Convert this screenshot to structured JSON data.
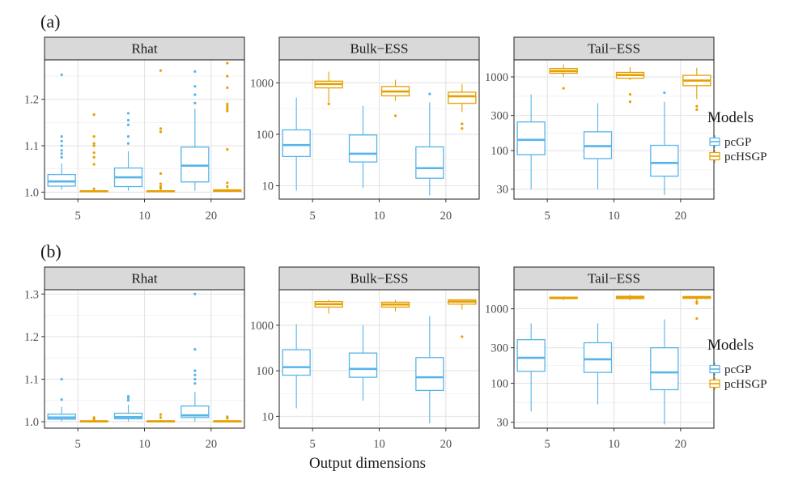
{
  "figure": {
    "row_labels": [
      "(a)",
      "(b)"
    ],
    "xlabel": "Output dimensions"
  },
  "legend": {
    "title": "Models",
    "entries": [
      {
        "name": "pcGP",
        "color": "#56B4E9"
      },
      {
        "name": "pcHSGP",
        "color": "#E69F00"
      }
    ]
  },
  "chart_data": [
    {
      "type": "box",
      "row": "(a)",
      "title": "Rhat",
      "scale": "linear",
      "categories": [
        "5",
        "10",
        "20"
      ],
      "ylim": [
        0.985,
        1.285
      ],
      "yticks": [
        1.0,
        1.1,
        1.2
      ],
      "ytick_labels": [
        "1.0",
        "1.1",
        "1.2"
      ],
      "series": [
        {
          "name": "pcGP",
          "boxes": [
            {
              "min": 1.005,
              "q1": 1.013,
              "median": 1.023,
              "q3": 1.038,
              "max": 1.062,
              "outliers": [
                1.075,
                1.083,
                1.09,
                1.1,
                1.11,
                1.12,
                1.253
              ]
            },
            {
              "min": 1.003,
              "q1": 1.012,
              "median": 1.032,
              "q3": 1.052,
              "max": 1.088,
              "outliers": [
                1.105,
                1.12,
                1.145,
                1.155,
                1.17
              ]
            },
            {
              "min": 1.003,
              "q1": 1.022,
              "median": 1.057,
              "q3": 1.097,
              "max": 1.18,
              "outliers": [
                1.192,
                1.21,
                1.228,
                1.26
              ]
            }
          ]
        },
        {
          "name": "pcHSGP",
          "boxes": [
            {
              "min": 1.0,
              "q1": 1.001,
              "median": 1.002,
              "q3": 1.003,
              "max": 1.004,
              "outliers": [
                1.007,
                1.06,
                1.075,
                1.085,
                1.1,
                1.105,
                1.12,
                1.167
              ]
            },
            {
              "min": 1.0,
              "q1": 1.001,
              "median": 1.002,
              "q3": 1.003,
              "max": 1.005,
              "outliers": [
                1.008,
                1.012,
                1.018,
                1.04,
                1.13,
                1.137,
                1.262
              ]
            },
            {
              "min": 1.0,
              "q1": 1.002,
              "median": 1.003,
              "q3": 1.005,
              "max": 1.008,
              "outliers": [
                1.012,
                1.02,
                1.092,
                1.175,
                1.18,
                1.185,
                1.19,
                1.225,
                1.25,
                1.278
              ]
            }
          ]
        }
      ]
    },
    {
      "type": "box",
      "row": "(a)",
      "title": "Bulk−ESS",
      "scale": "log10",
      "categories": [
        "5",
        "10",
        "20"
      ],
      "ylim": [
        5.5,
        2800
      ],
      "yticks": [
        10,
        100,
        1000
      ],
      "ytick_labels": [
        "10",
        "100",
        "1000"
      ],
      "series": [
        {
          "name": "pcGP",
          "boxes": [
            {
              "min": 8,
              "q1": 37,
              "median": 62,
              "q3": 122,
              "max": 520,
              "outliers": []
            },
            {
              "min": 9,
              "q1": 29,
              "median": 42,
              "q3": 97,
              "max": 360,
              "outliers": []
            },
            {
              "min": 6.5,
              "q1": 14,
              "median": 22,
              "q3": 57,
              "max": 420,
              "outliers": [
                610
              ]
            }
          ]
        },
        {
          "name": "pcHSGP",
          "boxes": [
            {
              "min": 420,
              "q1": 800,
              "median": 950,
              "q3": 1080,
              "max": 1650,
              "outliers": [
                390
              ]
            },
            {
              "min": 450,
              "q1": 560,
              "median": 680,
              "q3": 850,
              "max": 1150,
              "outliers": [
                230
              ]
            },
            {
              "min": 270,
              "q1": 400,
              "median": 550,
              "q3": 660,
              "max": 950,
              "outliers": [
                160,
                130
              ]
            }
          ]
        }
      ]
    },
    {
      "type": "box",
      "row": "(a)",
      "title": "Tail−ESS",
      "scale": "log10",
      "categories": [
        "5",
        "10",
        "20"
      ],
      "ylim": [
        22,
        1700
      ],
      "yticks": [
        30,
        100,
        300,
        1000
      ],
      "ytick_labels": [
        "30",
        "100",
        "300",
        "1000"
      ],
      "series": [
        {
          "name": "pcGP",
          "boxes": [
            {
              "min": 30,
              "q1": 88,
              "median": 140,
              "q3": 245,
              "max": 580,
              "outliers": []
            },
            {
              "min": 30,
              "q1": 78,
              "median": 115,
              "q3": 180,
              "max": 440,
              "outliers": []
            },
            {
              "min": 25,
              "q1": 45,
              "median": 68,
              "q3": 118,
              "max": 460,
              "outliers": [
                610
              ]
            }
          ]
        },
        {
          "name": "pcHSGP",
          "boxes": [
            {
              "min": 1000,
              "q1": 1120,
              "median": 1200,
              "q3": 1300,
              "max": 1480,
              "outliers": [
                700
              ]
            },
            {
              "min": 900,
              "q1": 960,
              "median": 1060,
              "q3": 1150,
              "max": 1350,
              "outliers": [
                580,
                460
              ]
            },
            {
              "min": 500,
              "q1": 760,
              "median": 890,
              "q3": 1050,
              "max": 1330,
              "outliers": [
                400,
                360
              ]
            }
          ]
        }
      ]
    },
    {
      "type": "box",
      "row": "(b)",
      "title": "Rhat",
      "scale": "linear",
      "categories": [
        "5",
        "10",
        "20"
      ],
      "ylim": [
        0.985,
        1.31
      ],
      "yticks": [
        1.0,
        1.1,
        1.2,
        1.3
      ],
      "ytick_labels": [
        "1.0",
        "1.1",
        "1.2",
        "1.3"
      ],
      "series": [
        {
          "name": "pcGP",
          "boxes": [
            {
              "min": 1.001,
              "q1": 1.006,
              "median": 1.01,
              "q3": 1.018,
              "max": 1.035,
              "outliers": [
                1.052,
                1.1
              ]
            },
            {
              "min": 1.001,
              "q1": 1.007,
              "median": 1.011,
              "q3": 1.02,
              "max": 1.04,
              "outliers": [
                1.05,
                1.055,
                1.06
              ]
            },
            {
              "min": 1.001,
              "q1": 1.01,
              "median": 1.015,
              "q3": 1.037,
              "max": 1.07,
              "outliers": [
                1.09,
                1.1,
                1.11,
                1.12,
                1.17,
                1.3
              ]
            }
          ]
        },
        {
          "name": "pcHSGP",
          "boxes": [
            {
              "min": 1.0,
              "q1": 1.0,
              "median": 1.001,
              "q3": 1.002,
              "max": 1.003,
              "outliers": [
                1.006,
                1.01
              ]
            },
            {
              "min": 1.0,
              "q1": 1.0,
              "median": 1.001,
              "q3": 1.002,
              "max": 1.004,
              "outliers": [
                1.01,
                1.017
              ]
            },
            {
              "min": 1.0,
              "q1": 1.0,
              "median": 1.001,
              "q3": 1.002,
              "max": 1.004,
              "outliers": [
                1.008,
                1.012
              ]
            }
          ]
        }
      ]
    },
    {
      "type": "box",
      "row": "(b)",
      "title": "Bulk−ESS",
      "scale": "log10",
      "categories": [
        "5",
        "10",
        "20"
      ],
      "ylim": [
        5.5,
        6000
      ],
      "yticks": [
        10,
        100,
        1000
      ],
      "ytick_labels": [
        "10",
        "100",
        "1000"
      ],
      "series": [
        {
          "name": "pcGP",
          "boxes": [
            {
              "min": 15,
              "q1": 80,
              "median": 120,
              "q3": 290,
              "max": 1050,
              "outliers": []
            },
            {
              "min": 22,
              "q1": 72,
              "median": 110,
              "q3": 245,
              "max": 1000,
              "outliers": []
            },
            {
              "min": 7,
              "q1": 37,
              "median": 72,
              "q3": 195,
              "max": 1600,
              "outliers": []
            }
          ]
        },
        {
          "name": "pcHSGP",
          "boxes": [
            {
              "min": 1800,
              "q1": 2500,
              "median": 2900,
              "q3": 3300,
              "max": 3600,
              "outliers": []
            },
            {
              "min": 2000,
              "q1": 2500,
              "median": 2850,
              "q3": 3200,
              "max": 3600,
              "outliers": []
            },
            {
              "min": 2200,
              "q1": 2900,
              "median": 3300,
              "q3": 3600,
              "max": 3700,
              "outliers": [
                560
              ]
            }
          ]
        }
      ]
    },
    {
      "type": "box",
      "row": "(b)",
      "title": "Tail−ESS",
      "scale": "log10",
      "categories": [
        "5",
        "10",
        "20"
      ],
      "ylim": [
        25,
        1800
      ],
      "yticks": [
        30,
        100,
        300,
        1000
      ],
      "ytick_labels": [
        "30",
        "100",
        "300",
        "1000"
      ],
      "series": [
        {
          "name": "pcGP",
          "boxes": [
            {
              "min": 42,
              "q1": 145,
              "median": 220,
              "q3": 385,
              "max": 640,
              "outliers": []
            },
            {
              "min": 52,
              "q1": 140,
              "median": 210,
              "q3": 350,
              "max": 640,
              "outliers": []
            },
            {
              "min": 28,
              "q1": 82,
              "median": 140,
              "q3": 300,
              "max": 720,
              "outliers": []
            }
          ]
        },
        {
          "name": "pcHSGP",
          "boxes": [
            {
              "min": 1300,
              "q1": 1370,
              "median": 1400,
              "q3": 1430,
              "max": 1460,
              "outliers": []
            },
            {
              "min": 1300,
              "q1": 1370,
              "median": 1420,
              "q3": 1470,
              "max": 1540,
              "outliers": []
            },
            {
              "min": 1300,
              "q1": 1380,
              "median": 1420,
              "q3": 1460,
              "max": 1480,
              "outliers": [
                1240,
                1180,
                740
              ]
            }
          ]
        }
      ]
    }
  ]
}
